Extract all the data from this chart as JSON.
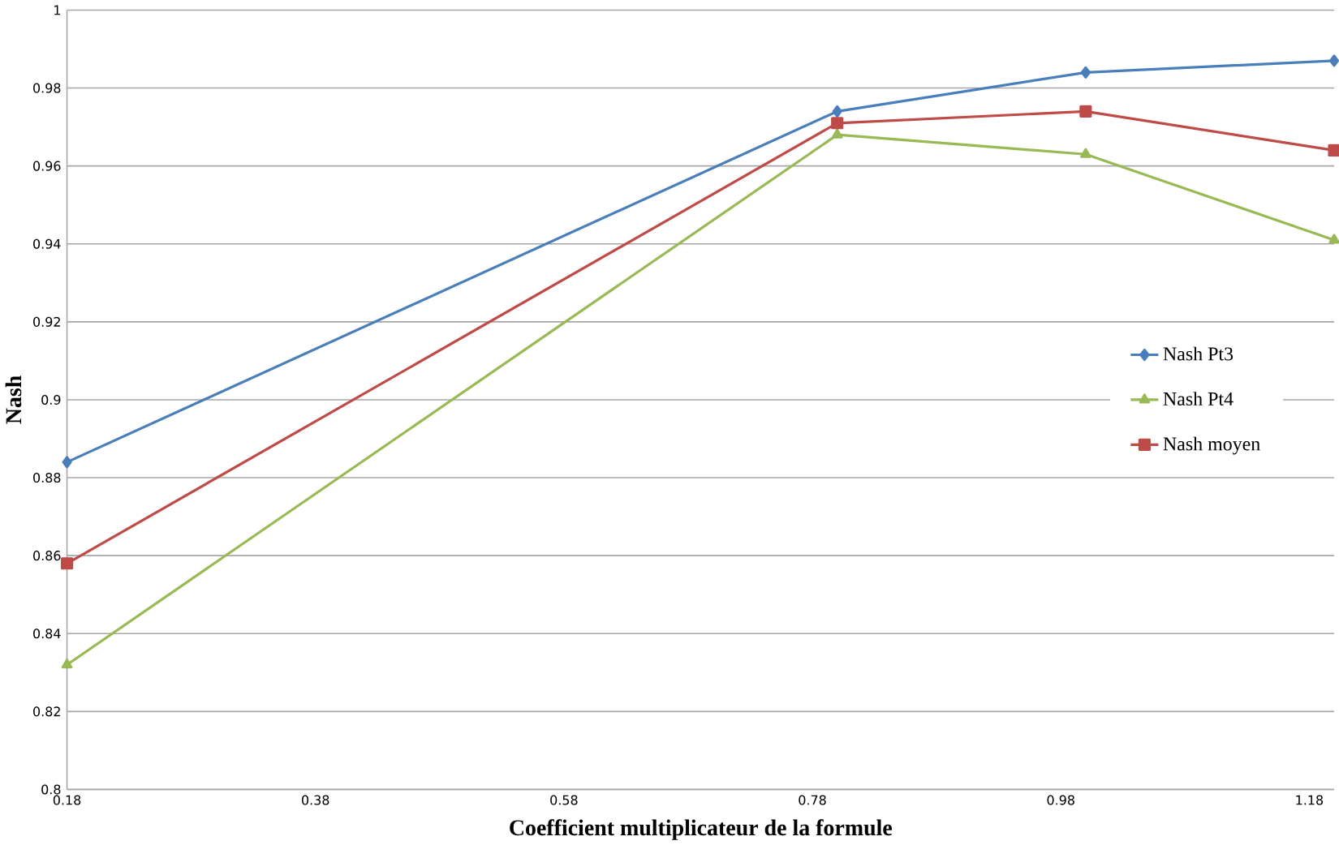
{
  "chart_data": {
    "type": "line",
    "xlabel": "Coefficient multiplicateur de la formule",
    "ylabel": "Nash",
    "x": [
      0.18,
      0.8,
      1.0,
      1.2
    ],
    "series": [
      {
        "name": "Nash Pt3",
        "color": "#4a7ebb",
        "marker": "diamond",
        "values": [
          0.884,
          0.974,
          0.984,
          0.987
        ]
      },
      {
        "name": "Nash Pt4",
        "color": "#98b954",
        "marker": "triangle",
        "values": [
          0.832,
          0.968,
          0.963,
          0.941
        ]
      },
      {
        "name": "Nash moyen",
        "color": "#be4b48",
        "marker": "square",
        "values": [
          0.858,
          0.971,
          0.974,
          0.964
        ]
      }
    ],
    "xlim": [
      0.18,
      1.2
    ],
    "xticks": [
      0.18,
      0.38,
      0.58,
      0.78,
      0.98,
      1.18
    ],
    "ylim": [
      0.8,
      1
    ],
    "yticks": [
      0.8,
      0.82,
      0.84,
      0.86,
      0.88,
      0.9,
      0.92,
      0.94,
      0.96,
      0.98,
      1
    ],
    "grid": "y",
    "legend": "right",
    "line_style": "solid"
  }
}
